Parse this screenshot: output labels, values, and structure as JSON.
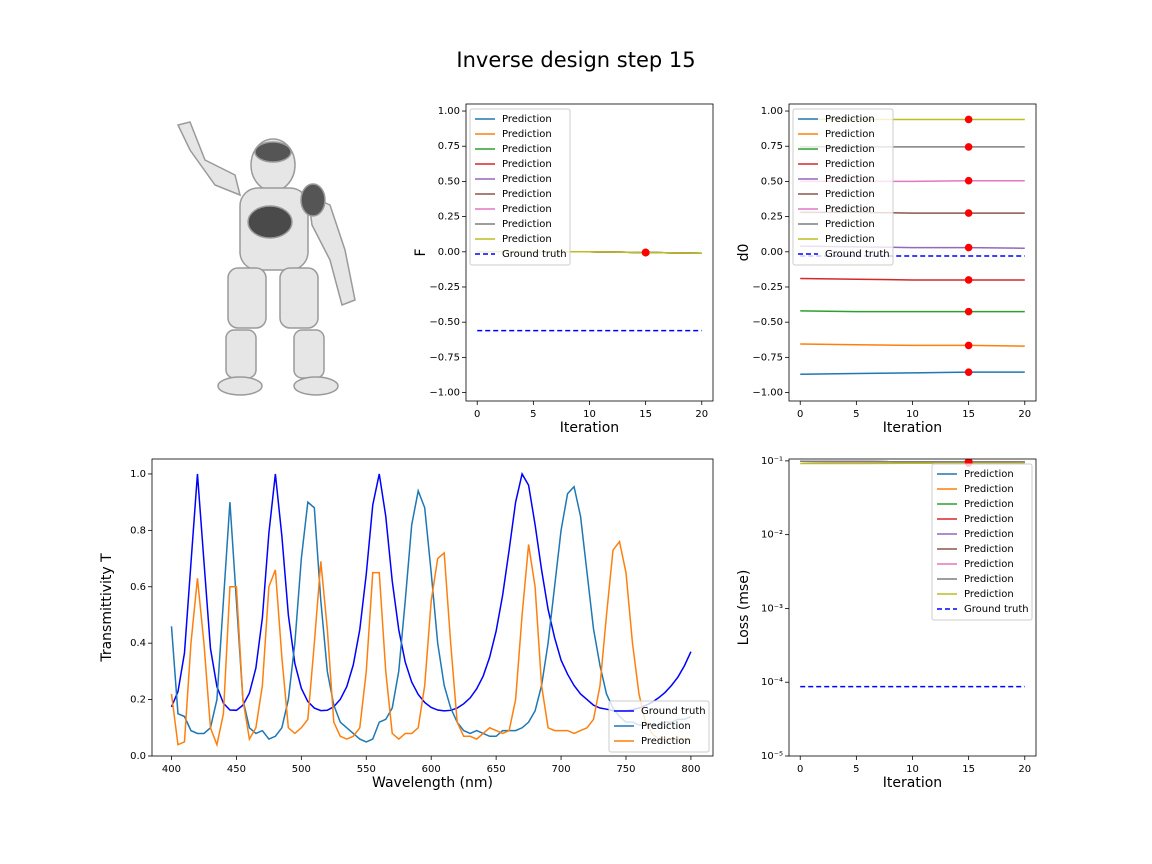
{
  "title": "Inverse design step 15",
  "chart_data": [
    {
      "type": "line",
      "y_label": "F",
      "x_label": "Iteration",
      "legend": "upper left",
      "x": [
        0,
        5,
        10,
        15,
        20
      ],
      "xlim": [
        -1,
        21
      ],
      "ylim": [
        -1.06,
        1.05
      ],
      "xticks": [
        0,
        5,
        10,
        15,
        20
      ],
      "yticks": [
        {
          "value": 1,
          "label": "1.00"
        },
        {
          "value": 0.75,
          "label": "0.75"
        },
        {
          "value": 0.5,
          "label": "0.50"
        },
        {
          "value": 0.25,
          "label": "0.25"
        },
        {
          "value": 0,
          "label": "0.00"
        },
        {
          "value": -0.25,
          "label": "−0.25"
        },
        {
          "value": -0.5,
          "label": "−0.50"
        },
        {
          "value": -0.75,
          "label": "−0.75"
        },
        {
          "value": -1,
          "label": "−1.00"
        }
      ],
      "current_iteration": 15,
      "marker_color": "red",
      "series": [
        {
          "name": "Prediction",
          "color": "#1f77b4",
          "values": [
            0,
            0,
            0,
            -0.005,
            -0.01
          ]
        },
        {
          "name": "Prediction",
          "color": "#ff7f0e",
          "values": [
            0,
            0,
            0,
            -0.005,
            -0.01
          ]
        },
        {
          "name": "Prediction",
          "color": "#2ca02c",
          "values": [
            0,
            0,
            0,
            -0.005,
            -0.01
          ]
        },
        {
          "name": "Prediction",
          "color": "#d62728",
          "values": [
            0,
            0,
            0,
            -0.005,
            -0.01
          ]
        },
        {
          "name": "Prediction",
          "color": "#9467bd",
          "values": [
            0,
            0,
            0,
            -0.005,
            -0.01
          ]
        },
        {
          "name": "Prediction",
          "color": "#8c564b",
          "values": [
            0,
            0,
            0,
            -0.005,
            -0.01
          ]
        },
        {
          "name": "Prediction",
          "color": "#e377c2",
          "values": [
            0,
            0,
            0,
            -0.005,
            -0.01
          ]
        },
        {
          "name": "Prediction",
          "color": "#7f7f7f",
          "values": [
            0,
            0,
            0,
            -0.005,
            -0.01
          ]
        },
        {
          "name": "Prediction",
          "color": "#bcbd22",
          "values": [
            0,
            0,
            0,
            -0.005,
            -0.01
          ]
        },
        {
          "name": "Ground truth",
          "color": "#0000ff",
          "linestyle": "dashed",
          "values": [
            -0.56,
            -0.56,
            -0.56,
            -0.56,
            -0.56
          ]
        }
      ]
    },
    {
      "type": "line",
      "y_label": "d0",
      "x_label": "Iteration",
      "legend": "upper left",
      "x": [
        0,
        5,
        10,
        15,
        20
      ],
      "xlim": [
        -1,
        21
      ],
      "ylim": [
        -1.06,
        1.05
      ],
      "xticks": [
        0,
        5,
        10,
        15,
        20
      ],
      "yticks": [
        {
          "value": 1,
          "label": "1.00"
        },
        {
          "value": 0.75,
          "label": "0.75"
        },
        {
          "value": 0.5,
          "label": "0.50"
        },
        {
          "value": 0.25,
          "label": "0.25"
        },
        {
          "value": 0,
          "label": "0.00"
        },
        {
          "value": -0.25,
          "label": "−0.25"
        },
        {
          "value": -0.5,
          "label": "−0.50"
        },
        {
          "value": -0.75,
          "label": "−0.75"
        },
        {
          "value": -1,
          "label": "−1.00"
        }
      ],
      "current_iteration": 15,
      "marker_color": "red",
      "series": [
        {
          "name": "Prediction",
          "color": "#1f77b4",
          "values": [
            -0.87,
            -0.865,
            -0.86,
            -0.855,
            -0.855
          ]
        },
        {
          "name": "Prediction",
          "color": "#ff7f0e",
          "values": [
            -0.655,
            -0.66,
            -0.665,
            -0.665,
            -0.67
          ]
        },
        {
          "name": "Prediction",
          "color": "#2ca02c",
          "values": [
            -0.42,
            -0.425,
            -0.425,
            -0.425,
            -0.425
          ]
        },
        {
          "name": "Prediction",
          "color": "#d62728",
          "values": [
            -0.19,
            -0.195,
            -0.2,
            -0.2,
            -0.2
          ]
        },
        {
          "name": "Prediction",
          "color": "#9467bd",
          "values": [
            0.04,
            0.035,
            0.03,
            0.03,
            0.025
          ]
        },
        {
          "name": "Prediction",
          "color": "#8c564b",
          "values": [
            0.28,
            0.28,
            0.275,
            0.275,
            0.275
          ]
        },
        {
          "name": "Prediction",
          "color": "#e377c2",
          "values": [
            0.5,
            0.5,
            0.5,
            0.505,
            0.505
          ]
        },
        {
          "name": "Prediction",
          "color": "#7f7f7f",
          "values": [
            0.745,
            0.745,
            0.745,
            0.745,
            0.745
          ]
        },
        {
          "name": "Prediction",
          "color": "#bcbd22",
          "values": [
            0.94,
            0.94,
            0.94,
            0.94,
            0.94
          ]
        },
        {
          "name": "Ground truth",
          "color": "#0000ff",
          "linestyle": "dashed",
          "values": [
            -0.03,
            -0.03,
            -0.03,
            -0.03,
            -0.03
          ]
        }
      ]
    },
    {
      "type": "line",
      "y_label": "Transmittivity T",
      "x_label": "Wavelength (nm)",
      "legend": "lower right",
      "x": [
        400,
        405,
        410,
        415,
        420,
        425,
        430,
        435,
        440,
        445,
        450,
        455,
        460,
        465,
        470,
        475,
        480,
        485,
        490,
        495,
        500,
        505,
        510,
        515,
        520,
        525,
        530,
        535,
        540,
        545,
        550,
        555,
        560,
        565,
        570,
        575,
        580,
        585,
        590,
        595,
        600,
        605,
        610,
        615,
        620,
        625,
        630,
        635,
        640,
        645,
        650,
        655,
        660,
        665,
        670,
        675,
        680,
        685,
        690,
        695,
        700,
        705,
        710,
        715,
        720,
        725,
        730,
        735,
        740,
        745,
        750,
        755,
        760,
        765,
        770,
        775,
        780,
        785,
        790,
        795,
        800
      ],
      "xlim": [
        385,
        817
      ],
      "ylim": [
        0,
        1.053
      ],
      "xticks": [
        400,
        450,
        500,
        550,
        600,
        650,
        700,
        750,
        800
      ],
      "yticks": [
        {
          "value": 0,
          "label": "0.0"
        },
        {
          "value": 0.2,
          "label": "0.2"
        },
        {
          "value": 0.4,
          "label": "0.4"
        },
        {
          "value": 0.6,
          "label": "0.6"
        },
        {
          "value": 0.8,
          "label": "0.8"
        },
        {
          "value": 1,
          "label": "1.0"
        }
      ],
      "series": [
        {
          "name": "Ground truth",
          "color": "#0000ff",
          "values": [
            0.174,
            0.228,
            0.365,
            0.684,
            1.0,
            0.69,
            0.382,
            0.246,
            0.187,
            0.163,
            0.162,
            0.18,
            0.223,
            0.312,
            0.49,
            0.79,
            1.0,
            0.78,
            0.5,
            0.328,
            0.24,
            0.193,
            0.17,
            0.161,
            0.162,
            0.175,
            0.201,
            0.246,
            0.323,
            0.448,
            0.645,
            0.89,
            1.0,
            0.85,
            0.62,
            0.448,
            0.333,
            0.262,
            0.218,
            0.19,
            0.172,
            0.163,
            0.16,
            0.162,
            0.17,
            0.185,
            0.206,
            0.238,
            0.283,
            0.35,
            0.443,
            0.57,
            0.73,
            0.9,
            1.0,
            0.96,
            0.82,
            0.66,
            0.52,
            0.42,
            0.34,
            0.29,
            0.25,
            0.22,
            0.2,
            0.18,
            0.17,
            0.166,
            0.161,
            0.16,
            0.16,
            0.164,
            0.17,
            0.179,
            0.19,
            0.206,
            0.225,
            0.25,
            0.28,
            0.32,
            0.37
          ]
        },
        {
          "name": "Prediction",
          "color": "#1f77b4",
          "values": [
            0.46,
            0.15,
            0.14,
            0.09,
            0.08,
            0.08,
            0.1,
            0.2,
            0.55,
            0.9,
            0.55,
            0.2,
            0.1,
            0.08,
            0.09,
            0.06,
            0.07,
            0.1,
            0.2,
            0.4,
            0.7,
            0.9,
            0.88,
            0.55,
            0.3,
            0.18,
            0.12,
            0.1,
            0.08,
            0.06,
            0.05,
            0.06,
            0.12,
            0.13,
            0.17,
            0.3,
            0.55,
            0.82,
            0.94,
            0.88,
            0.65,
            0.4,
            0.25,
            0.17,
            0.12,
            0.09,
            0.08,
            0.09,
            0.08,
            0.07,
            0.07,
            0.09,
            0.09,
            0.09,
            0.1,
            0.12,
            0.16,
            0.25,
            0.4,
            0.6,
            0.8,
            0.93,
            0.955,
            0.85,
            0.65,
            0.45,
            0.32,
            0.22,
            0.17,
            0.14,
            0.12,
            0.12,
            0.11,
            0.11,
            0.11,
            0.11,
            0.12,
            0.12,
            0.13,
            0.13,
            0.14
          ]
        },
        {
          "name": "Prediction",
          "color": "#ff7f0e",
          "values": [
            0.22,
            0.04,
            0.05,
            0.4,
            0.63,
            0.4,
            0.1,
            0.04,
            0.15,
            0.6,
            0.6,
            0.2,
            0.06,
            0.1,
            0.25,
            0.6,
            0.66,
            0.35,
            0.1,
            0.08,
            0.1,
            0.13,
            0.4,
            0.69,
            0.45,
            0.12,
            0.07,
            0.06,
            0.07,
            0.1,
            0.3,
            0.65,
            0.65,
            0.3,
            0.08,
            0.06,
            0.08,
            0.08,
            0.1,
            0.25,
            0.55,
            0.7,
            0.72,
            0.4,
            0.12,
            0.07,
            0.07,
            0.06,
            0.08,
            0.1,
            0.09,
            0.08,
            0.09,
            0.2,
            0.5,
            0.75,
            0.6,
            0.25,
            0.1,
            0.09,
            0.09,
            0.09,
            0.08,
            0.09,
            0.1,
            0.13,
            0.25,
            0.5,
            0.73,
            0.76,
            0.65,
            0.4,
            0.22,
            0.12,
            0.08,
            0.06,
            0.06,
            0.06,
            0.06,
            0.06,
            0.06
          ]
        }
      ]
    },
    {
      "type": "line",
      "y_label": "Loss (mse)",
      "x_label": "Iteration",
      "legend": "upper right",
      "yscale": "log",
      "x": [
        0,
        5,
        10,
        15,
        20
      ],
      "xlim": [
        -1,
        21
      ],
      "ylim": [
        1e-05,
        0.106
      ],
      "xticks": [
        0,
        5,
        10,
        15,
        20
      ],
      "yticks": [
        {
          "value": 0.1,
          "label": "10⁻¹"
        },
        {
          "value": 0.01,
          "label": "10⁻²"
        },
        {
          "value": 0.001,
          "label": "10⁻³"
        },
        {
          "value": 0.0001,
          "label": "10⁻⁴"
        },
        {
          "value": 1e-05,
          "label": "10⁻⁵"
        }
      ],
      "current_iteration": 15,
      "marker_color": "red",
      "series": [
        {
          "name": "Prediction",
          "color": "#1f77b4",
          "values": [
            0.099,
            0.098,
            0.097,
            0.097,
            0.096
          ]
        },
        {
          "name": "Prediction",
          "color": "#ff7f0e",
          "values": [
            0.099,
            0.098,
            0.097,
            0.097,
            0.096
          ]
        },
        {
          "name": "Prediction",
          "color": "#2ca02c",
          "values": [
            0.099,
            0.098,
            0.097,
            0.097,
            0.096
          ]
        },
        {
          "name": "Prediction",
          "color": "#d62728",
          "values": [
            0.099,
            0.098,
            0.097,
            0.097,
            0.096
          ]
        },
        {
          "name": "Prediction",
          "color": "#9467bd",
          "values": [
            0.099,
            0.098,
            0.097,
            0.097,
            0.096
          ]
        },
        {
          "name": "Prediction",
          "color": "#8c564b",
          "values": [
            0.099,
            0.098,
            0.097,
            0.097,
            0.096
          ]
        },
        {
          "name": "Prediction",
          "color": "#e377c2",
          "values": [
            0.099,
            0.098,
            0.097,
            0.097,
            0.096
          ]
        },
        {
          "name": "Prediction",
          "color": "#7f7f7f",
          "values": [
            0.099,
            0.098,
            0.097,
            0.097,
            0.096
          ]
        },
        {
          "name": "Prediction",
          "color": "#bcbd22",
          "values": [
            0.092,
            0.092,
            0.093,
            0.093,
            0.093
          ]
        },
        {
          "name": "Ground truth",
          "color": "#0000ff",
          "linestyle": "dashed",
          "values": [
            8.7e-05,
            8.7e-05,
            8.7e-05,
            8.7e-05,
            8.7e-05
          ]
        }
      ]
    }
  ]
}
